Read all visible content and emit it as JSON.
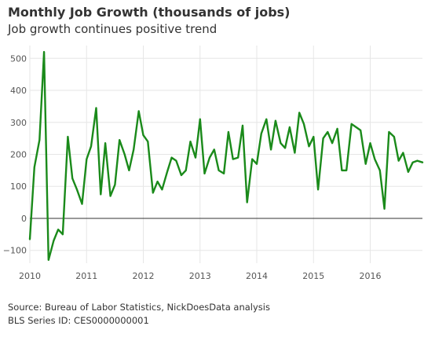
{
  "chart_data": {
    "type": "line",
    "title": "Monthly Job Growth (thousands of jobs)",
    "subtitle": "Job growth continues positive trend",
    "xlabel": "",
    "ylabel": "",
    "xlim": [
      2010.0,
      2016.92
    ],
    "ylim": [
      -140,
      540
    ],
    "yticks": [
      -100,
      0,
      100,
      200,
      300,
      400,
      500
    ],
    "ytick_labels": [
      "−100",
      "0",
      "100",
      "200",
      "300",
      "400",
      "500"
    ],
    "xticks": [
      2010,
      2011,
      2012,
      2013,
      2014,
      2015,
      2016
    ],
    "xtick_labels": [
      "2010",
      "2011",
      "2012",
      "2013",
      "2014",
      "2015",
      "2016"
    ],
    "grid": true,
    "zero_line": true,
    "series": [
      {
        "color": "#1a8a1a",
        "x": [
          2010.0,
          2010.08,
          2010.17,
          2010.25,
          2010.33,
          2010.42,
          2010.5,
          2010.58,
          2010.67,
          2010.75,
          2010.83,
          2010.92,
          2011.0,
          2011.08,
          2011.17,
          2011.25,
          2011.33,
          2011.42,
          2011.5,
          2011.58,
          2011.67,
          2011.75,
          2011.83,
          2011.92,
          2012.0,
          2012.08,
          2012.17,
          2012.25,
          2012.33,
          2012.42,
          2012.5,
          2012.58,
          2012.67,
          2012.75,
          2012.83,
          2012.92,
          2013.0,
          2013.08,
          2013.17,
          2013.25,
          2013.33,
          2013.42,
          2013.5,
          2013.58,
          2013.67,
          2013.75,
          2013.83,
          2013.92,
          2014.0,
          2014.08,
          2014.17,
          2014.25,
          2014.33,
          2014.42,
          2014.5,
          2014.58,
          2014.67,
          2014.75,
          2014.83,
          2014.92,
          2015.0,
          2015.08,
          2015.17,
          2015.25,
          2015.33,
          2015.42,
          2015.5,
          2015.58,
          2015.67,
          2015.75,
          2015.83,
          2015.92,
          2016.0,
          2016.08,
          2016.17,
          2016.25,
          2016.33,
          2016.42,
          2016.5,
          2016.58,
          2016.67,
          2016.75,
          2016.83,
          2016.92
        ],
        "y": [
          -65,
          160,
          245,
          520,
          -130,
          -70,
          -35,
          -50,
          255,
          125,
          90,
          45,
          185,
          225,
          345,
          75,
          235,
          70,
          105,
          245,
          200,
          150,
          215,
          335,
          260,
          240,
          80,
          115,
          90,
          145,
          190,
          180,
          135,
          150,
          240,
          190,
          310,
          140,
          190,
          215,
          150,
          140,
          270,
          185,
          190,
          290,
          50,
          185,
          170,
          265,
          310,
          215,
          305,
          235,
          220,
          285,
          205,
          330,
          295,
          225,
          255,
          90,
          250,
          270,
          235,
          280,
          150,
          150,
          295,
          285,
          275,
          170,
          235,
          185,
          150,
          30,
          270,
          255,
          180,
          205,
          145,
          175,
          180,
          175
        ]
      }
    ],
    "source": "Source: Bureau of Labor Statistics, NickDoesData analysis",
    "series_id": "BLS Series ID: CES0000000001"
  }
}
